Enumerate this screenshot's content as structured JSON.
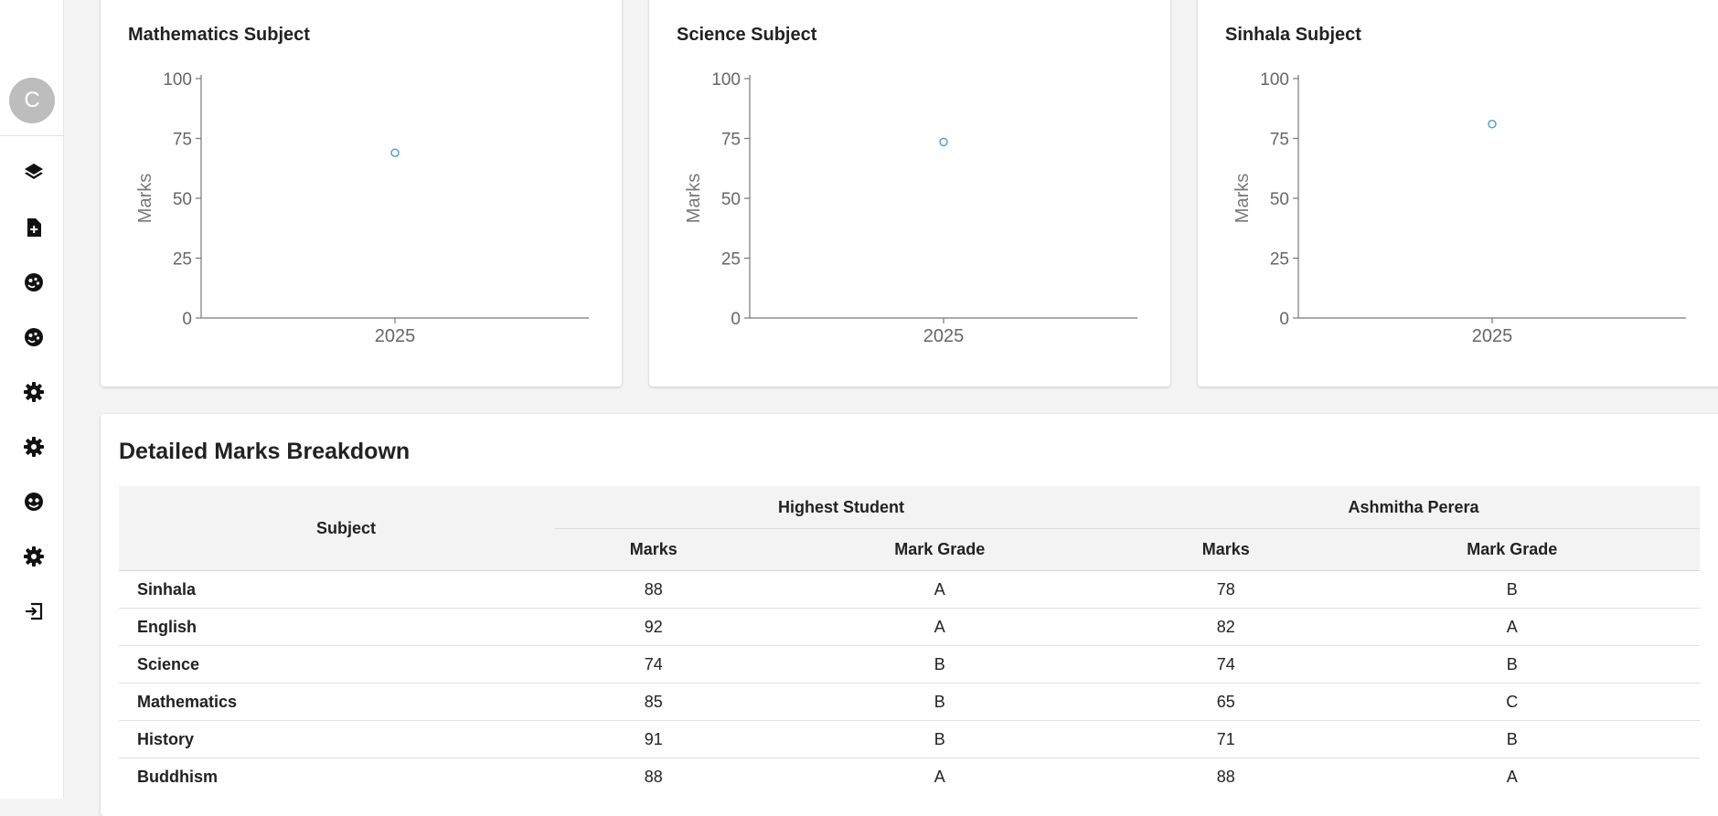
{
  "sidebar": {
    "avatar_letter": "C",
    "items": [
      {
        "icon": "layers-icon"
      },
      {
        "icon": "file-add-icon"
      },
      {
        "icon": "face-palette-icon"
      },
      {
        "icon": "face-palette-icon"
      },
      {
        "icon": "gear-icon"
      },
      {
        "icon": "gear-icon"
      },
      {
        "icon": "face-icon"
      },
      {
        "icon": "gear-icon"
      },
      {
        "icon": "logout-icon"
      }
    ]
  },
  "charts": [
    {
      "title": "Mathematics Subject"
    },
    {
      "title": "Science Subject"
    },
    {
      "title": "Sinhala Subject"
    }
  ],
  "chart_data": [
    {
      "type": "scatter",
      "title": "Mathematics Subject",
      "ylabel": "Marks",
      "xlabel": "",
      "ylim": [
        0,
        100
      ],
      "yticks": [
        0,
        25,
        50,
        75,
        100
      ],
      "x": [
        "2025"
      ],
      "y": [
        69
      ],
      "color": "#4aa3df"
    },
    {
      "type": "scatter",
      "title": "Science Subject",
      "ylabel": "Marks",
      "xlabel": "",
      "ylim": [
        0,
        100
      ],
      "yticks": [
        0,
        25,
        50,
        75,
        100
      ],
      "x": [
        "2025"
      ],
      "y": [
        73.5
      ],
      "color": "#4aa3df"
    },
    {
      "type": "scatter",
      "title": "Sinhala Subject",
      "ylabel": "Marks",
      "xlabel": "",
      "ylim": [
        0,
        100
      ],
      "yticks": [
        0,
        25,
        50,
        75,
        100
      ],
      "x": [
        "2025"
      ],
      "y": [
        81
      ],
      "color": "#4aa3df"
    }
  ],
  "breakdown": {
    "title": "Detailed Marks Breakdown",
    "subject_header": "Subject",
    "group1": "Highest Student",
    "group2": "Ashmitha Perera",
    "marks_header": "Marks",
    "grade_header": "Mark Grade",
    "rows": [
      {
        "subject": "Sinhala",
        "high_marks": "88",
        "high_grade": "A",
        "student_marks": "78",
        "student_grade": "B"
      },
      {
        "subject": "English",
        "high_marks": "92",
        "high_grade": "A",
        "student_marks": "82",
        "student_grade": "A"
      },
      {
        "subject": "Science",
        "high_marks": "74",
        "high_grade": "B",
        "student_marks": "74",
        "student_grade": "B"
      },
      {
        "subject": "Mathematics",
        "high_marks": "85",
        "high_grade": "B",
        "student_marks": "65",
        "student_grade": "C"
      },
      {
        "subject": "History",
        "high_marks": "91",
        "high_grade": "B",
        "student_marks": "71",
        "student_grade": "B"
      },
      {
        "subject": "Buddhism",
        "high_marks": "88",
        "high_grade": "A",
        "student_marks": "88",
        "student_grade": "A"
      }
    ]
  }
}
